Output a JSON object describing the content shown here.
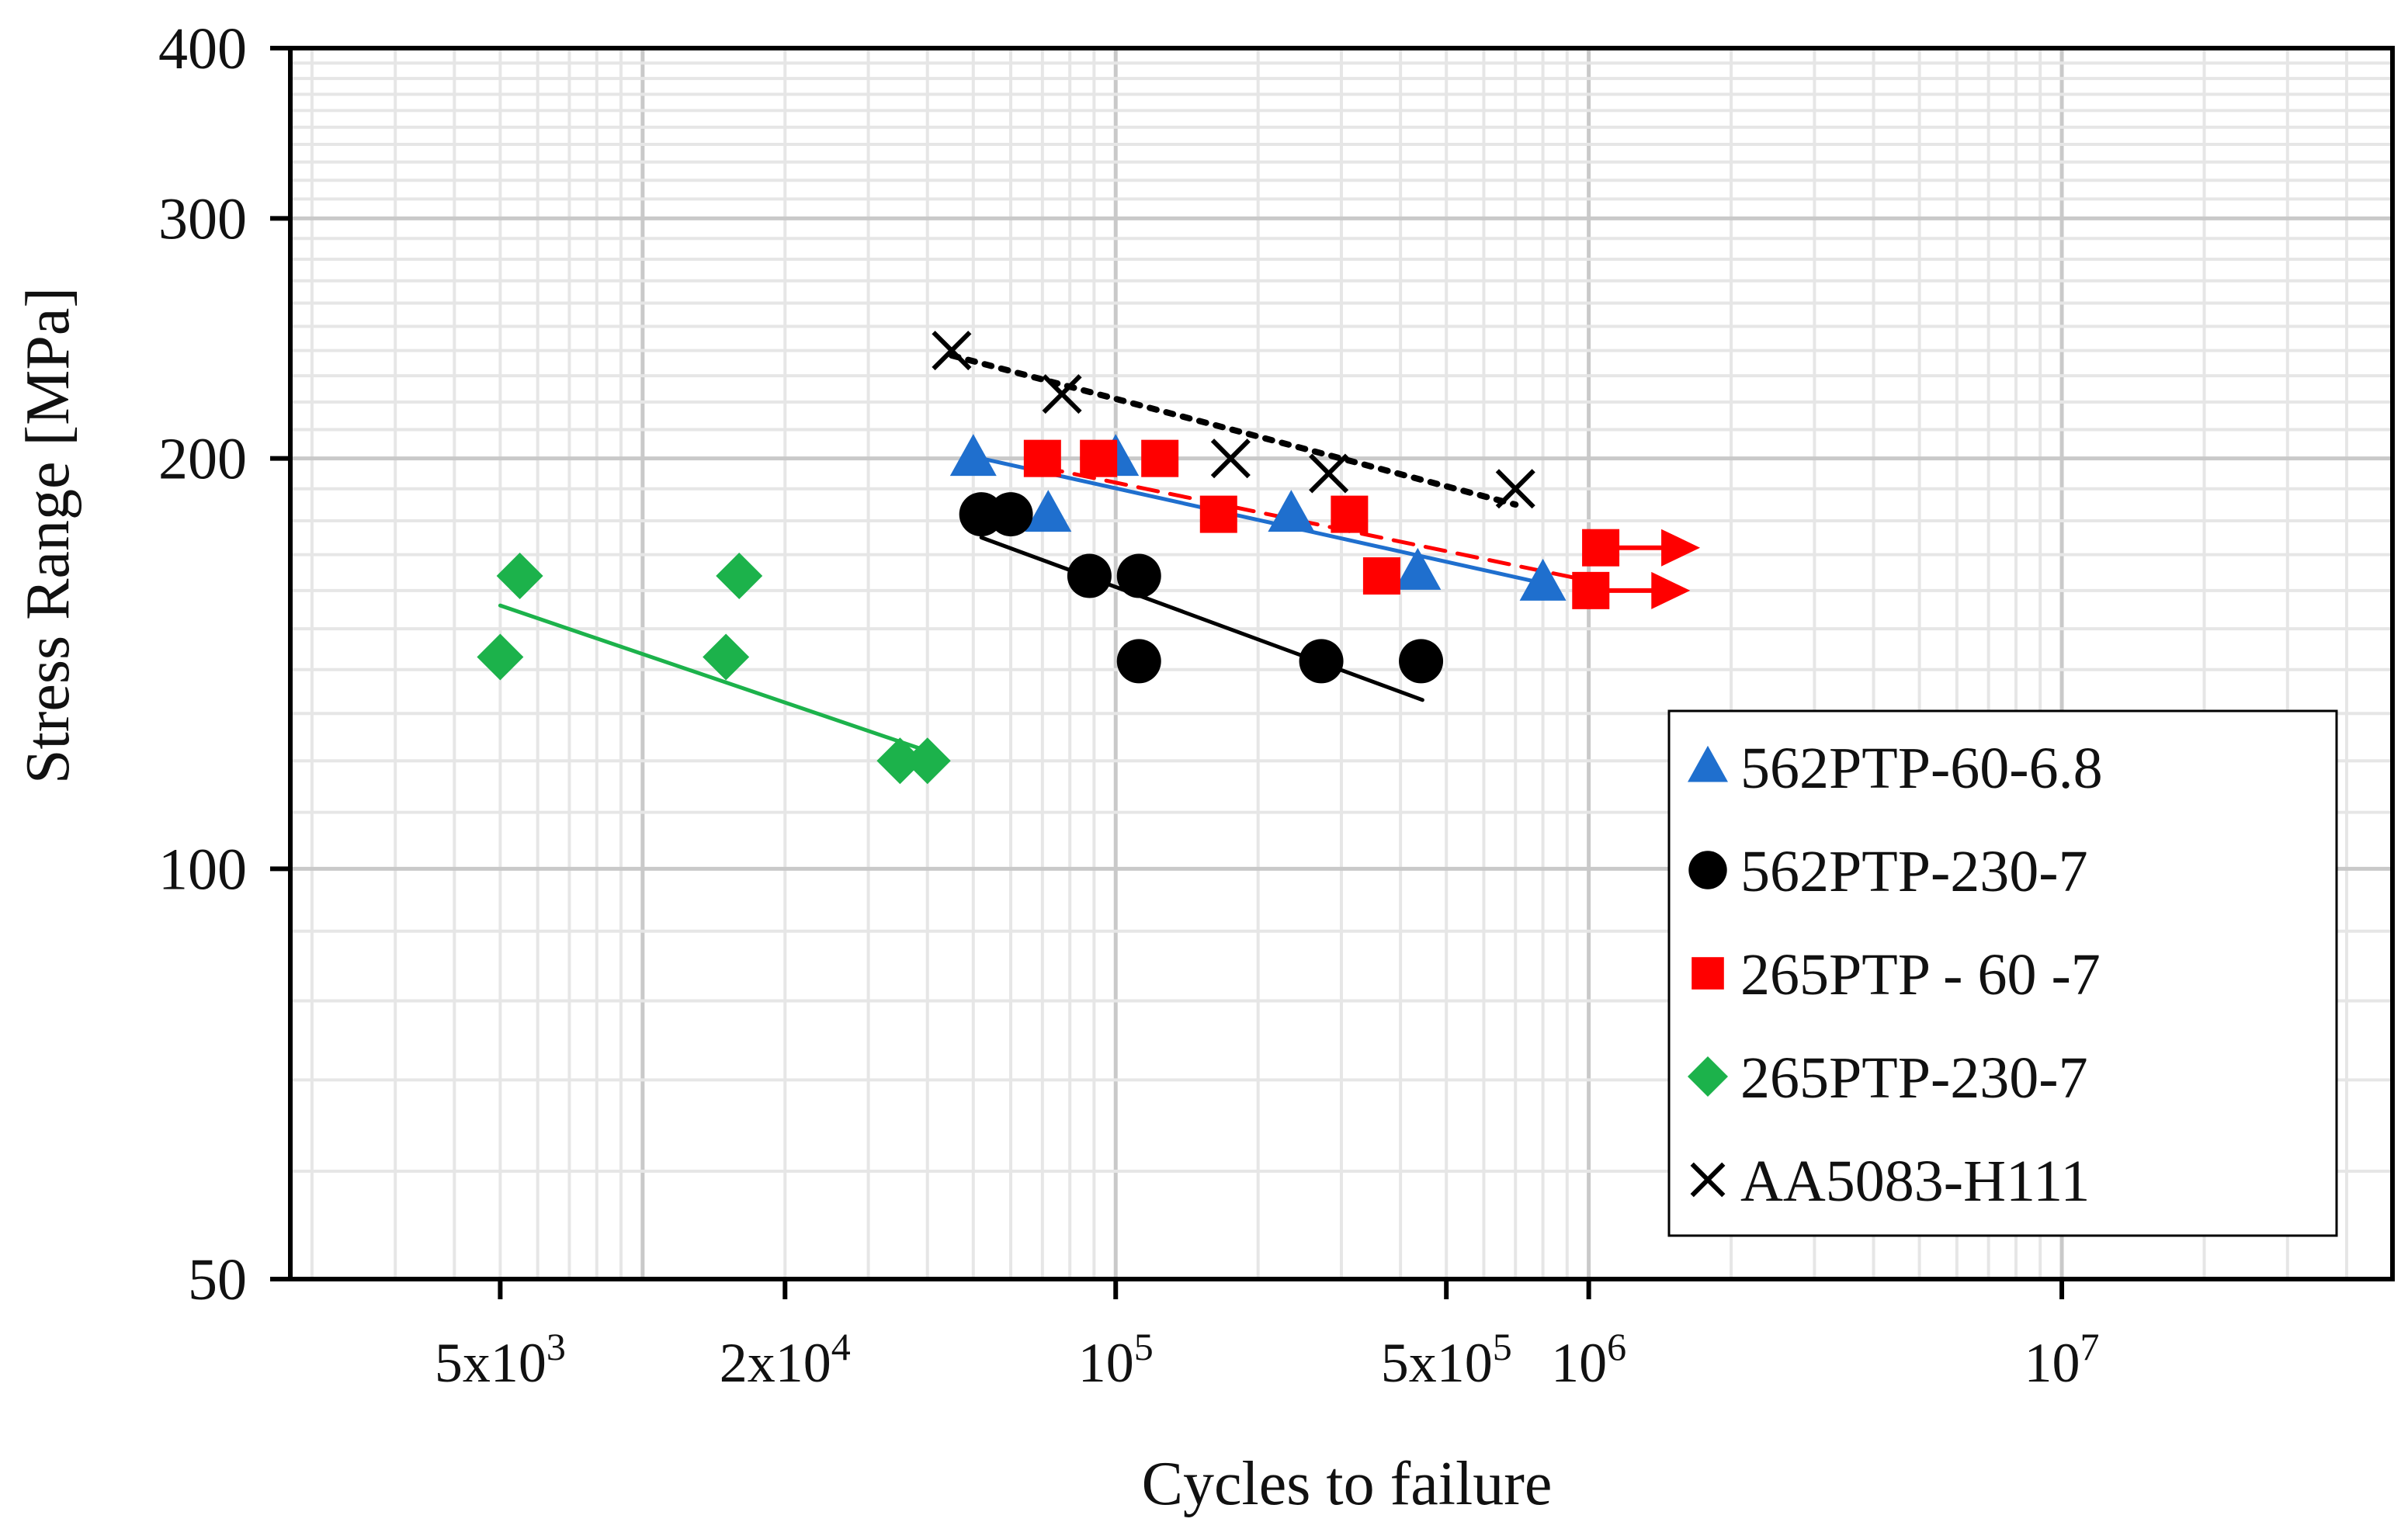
{
  "chart_data": {
    "type": "scatter",
    "title": "",
    "xlabel": "Cycles to failure",
    "ylabel": "Stress Range [MPa]",
    "xscale": "log",
    "yscale": "log",
    "xlim": [
      1800,
      50000000
    ],
    "ylim": [
      50,
      400
    ],
    "grid": true,
    "legend_position": "bottom-right",
    "x_ticks": [
      {
        "value": 5000,
        "mantissa": "5x10",
        "exp": "3"
      },
      {
        "value": 20000,
        "mantissa": "2x10",
        "exp": "4"
      },
      {
        "value": 100000,
        "mantissa": "10",
        "exp": "5"
      },
      {
        "value": 500000,
        "mantissa": "5x10",
        "exp": "5"
      },
      {
        "value": 1000000,
        "mantissa": "10",
        "exp": "6"
      },
      {
        "value": 10000000,
        "mantissa": "10",
        "exp": "7"
      }
    ],
    "y_ticks": [
      {
        "value": 50,
        "label": "50"
      },
      {
        "value": 100,
        "label": "100"
      },
      {
        "value": 200,
        "label": "200"
      },
      {
        "value": 300,
        "label": "300"
      },
      {
        "value": 400,
        "label": "400"
      }
    ],
    "series": [
      {
        "name": "562PTP-60-6.8",
        "marker": "triangle",
        "color": "#1f6fce",
        "trend_style": "solid",
        "points": [
          [
            50000,
            200
          ],
          [
            72000,
            182
          ],
          [
            100000,
            200
          ],
          [
            235000,
            182
          ],
          [
            435000,
            165
          ],
          [
            800000,
            162
          ]
        ],
        "runouts": [],
        "trend": [
          [
            52000,
            200
          ],
          [
            800000,
            162
          ]
        ]
      },
      {
        "name": "562PTP-230-7",
        "marker": "circle",
        "color": "#000000",
        "trend_style": "solid",
        "points": [
          [
            52000,
            182
          ],
          [
            60000,
            182
          ],
          [
            88000,
            164
          ],
          [
            112000,
            164
          ],
          [
            112000,
            142
          ],
          [
            272000,
            142
          ],
          [
            442000,
            142
          ]
        ],
        "runouts": [],
        "trend": [
          [
            52000,
            175
          ],
          [
            445000,
            133
          ]
        ]
      },
      {
        "name": "265PTP - 60 -7",
        "marker": "square",
        "color": "#ff0000",
        "trend_style": "dashed",
        "points": [
          [
            70000,
            200
          ],
          [
            92000,
            200
          ],
          [
            124000,
            200
          ],
          [
            165000,
            182
          ],
          [
            312000,
            182
          ],
          [
            365000,
            164
          ]
        ],
        "runouts": [
          [
            1010000,
            160
          ],
          [
            1060000,
            172
          ]
        ],
        "trend": [
          [
            70000,
            197
          ],
          [
            1060000,
            162
          ]
        ]
      },
      {
        "name": "265PTP-230-7",
        "marker": "diamond",
        "color": "#1cb24b",
        "trend_style": "solid",
        "points": [
          [
            5000,
            143
          ],
          [
            5500,
            164
          ],
          [
            15000,
            143
          ],
          [
            16000,
            164
          ],
          [
            35000,
            120
          ],
          [
            40000,
            120
          ]
        ],
        "runouts": [],
        "trend": [
          [
            5000,
            156
          ],
          [
            40000,
            122
          ]
        ]
      },
      {
        "name": "AA5083-H111",
        "marker": "x",
        "color": "#000000",
        "trend_style": "dotted",
        "points": [
          [
            45000,
            240
          ],
          [
            77000,
            223
          ],
          [
            175000,
            200
          ],
          [
            282000,
            195
          ],
          [
            700000,
            190
          ]
        ],
        "runouts": [],
        "trend": [
          [
            45000,
            238
          ],
          [
            700000,
            185
          ]
        ]
      }
    ]
  }
}
